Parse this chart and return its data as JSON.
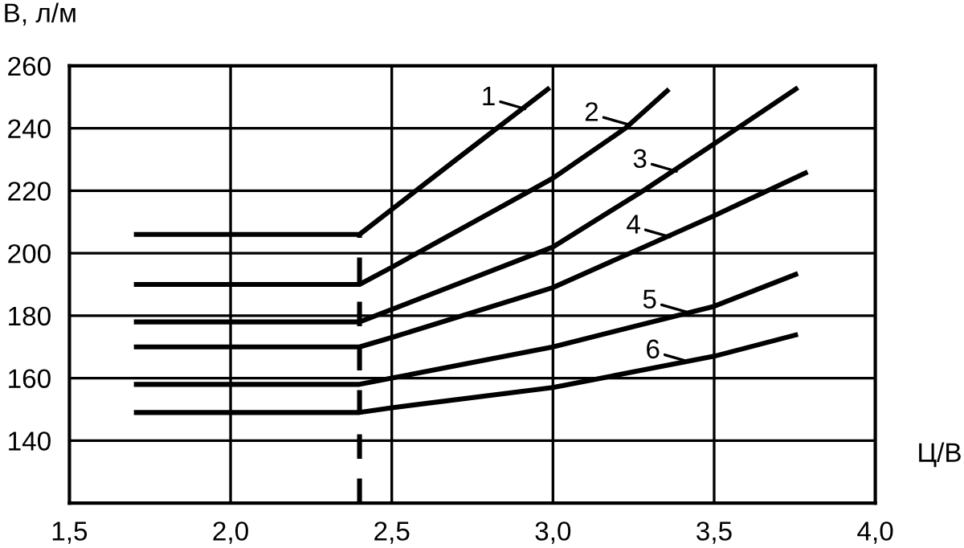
{
  "chart_data": {
    "type": "line",
    "xlabel": "Ц/В",
    "ylabel": "В, л/м",
    "xlim": [
      1.5,
      4.0
    ],
    "ylim": [
      120,
      260
    ],
    "xticks": [
      {
        "value": 1.5,
        "label": "1,5"
      },
      {
        "value": 2.0,
        "label": "2,0"
      },
      {
        "value": 2.5,
        "label": "2,5"
      },
      {
        "value": 3.0,
        "label": "3,0"
      },
      {
        "value": 3.5,
        "label": "3,5"
      },
      {
        "value": 4.0,
        "label": "4,0"
      }
    ],
    "yticks": [
      {
        "value": 120,
        "label": null
      },
      140,
      160,
      180,
      200,
      220,
      240,
      260
    ],
    "grid": true,
    "marker": "none",
    "line_style": "solid",
    "series": [
      {
        "color": "#000000",
        "x": [
          1.7,
          2.4,
          2.5,
          2.7,
          2.99
        ],
        "values": [
          206,
          206,
          214,
          230,
          253
        ]
      },
      {
        "color": "#000000",
        "x": [
          1.7,
          2.4,
          2.5,
          3.0,
          3.225,
          3.36
        ],
        "values": [
          190,
          190,
          195.5,
          224,
          240,
          252.5
        ]
      },
      {
        "color": "#000000",
        "x": [
          1.7,
          2.4,
          2.5,
          3.0,
          3.28,
          3.5,
          3.76
        ],
        "values": [
          178,
          178,
          182,
          202,
          220,
          235,
          253
        ]
      },
      {
        "color": "#000000",
        "x": [
          1.7,
          2.4,
          2.5,
          3.0,
          3.5,
          3.79
        ],
        "values": [
          170,
          170,
          173,
          189,
          212,
          226
        ]
      },
      {
        "color": "#000000",
        "x": [
          1.7,
          2.4,
          2.5,
          3.0,
          3.5,
          3.76
        ],
        "values": [
          158,
          158,
          160,
          170,
          183,
          193.5
        ]
      },
      {
        "color": "#000000",
        "x": [
          1.7,
          2.4,
          2.5,
          3.0,
          3.5,
          3.76
        ],
        "values": [
          149,
          149,
          150.5,
          157,
          167,
          174
        ]
      }
    ],
    "ref_lines": [
      {
        "axis": "x",
        "value": 2.4,
        "color": "#000000",
        "line_style": "dashed"
      }
    ],
    "annotations": [
      {
        "text": "1",
        "x": 2.92,
        "y": 246
      },
      {
        "text": "2",
        "x": 3.24,
        "y": 241
      },
      {
        "text": "3",
        "x": 3.39,
        "y": 226
      },
      {
        "text": "4",
        "x": 3.37,
        "y": 205
      },
      {
        "text": "5",
        "x": 3.42,
        "y": 181
      },
      {
        "text": "6",
        "x": 3.43,
        "y": 165
      }
    ]
  }
}
